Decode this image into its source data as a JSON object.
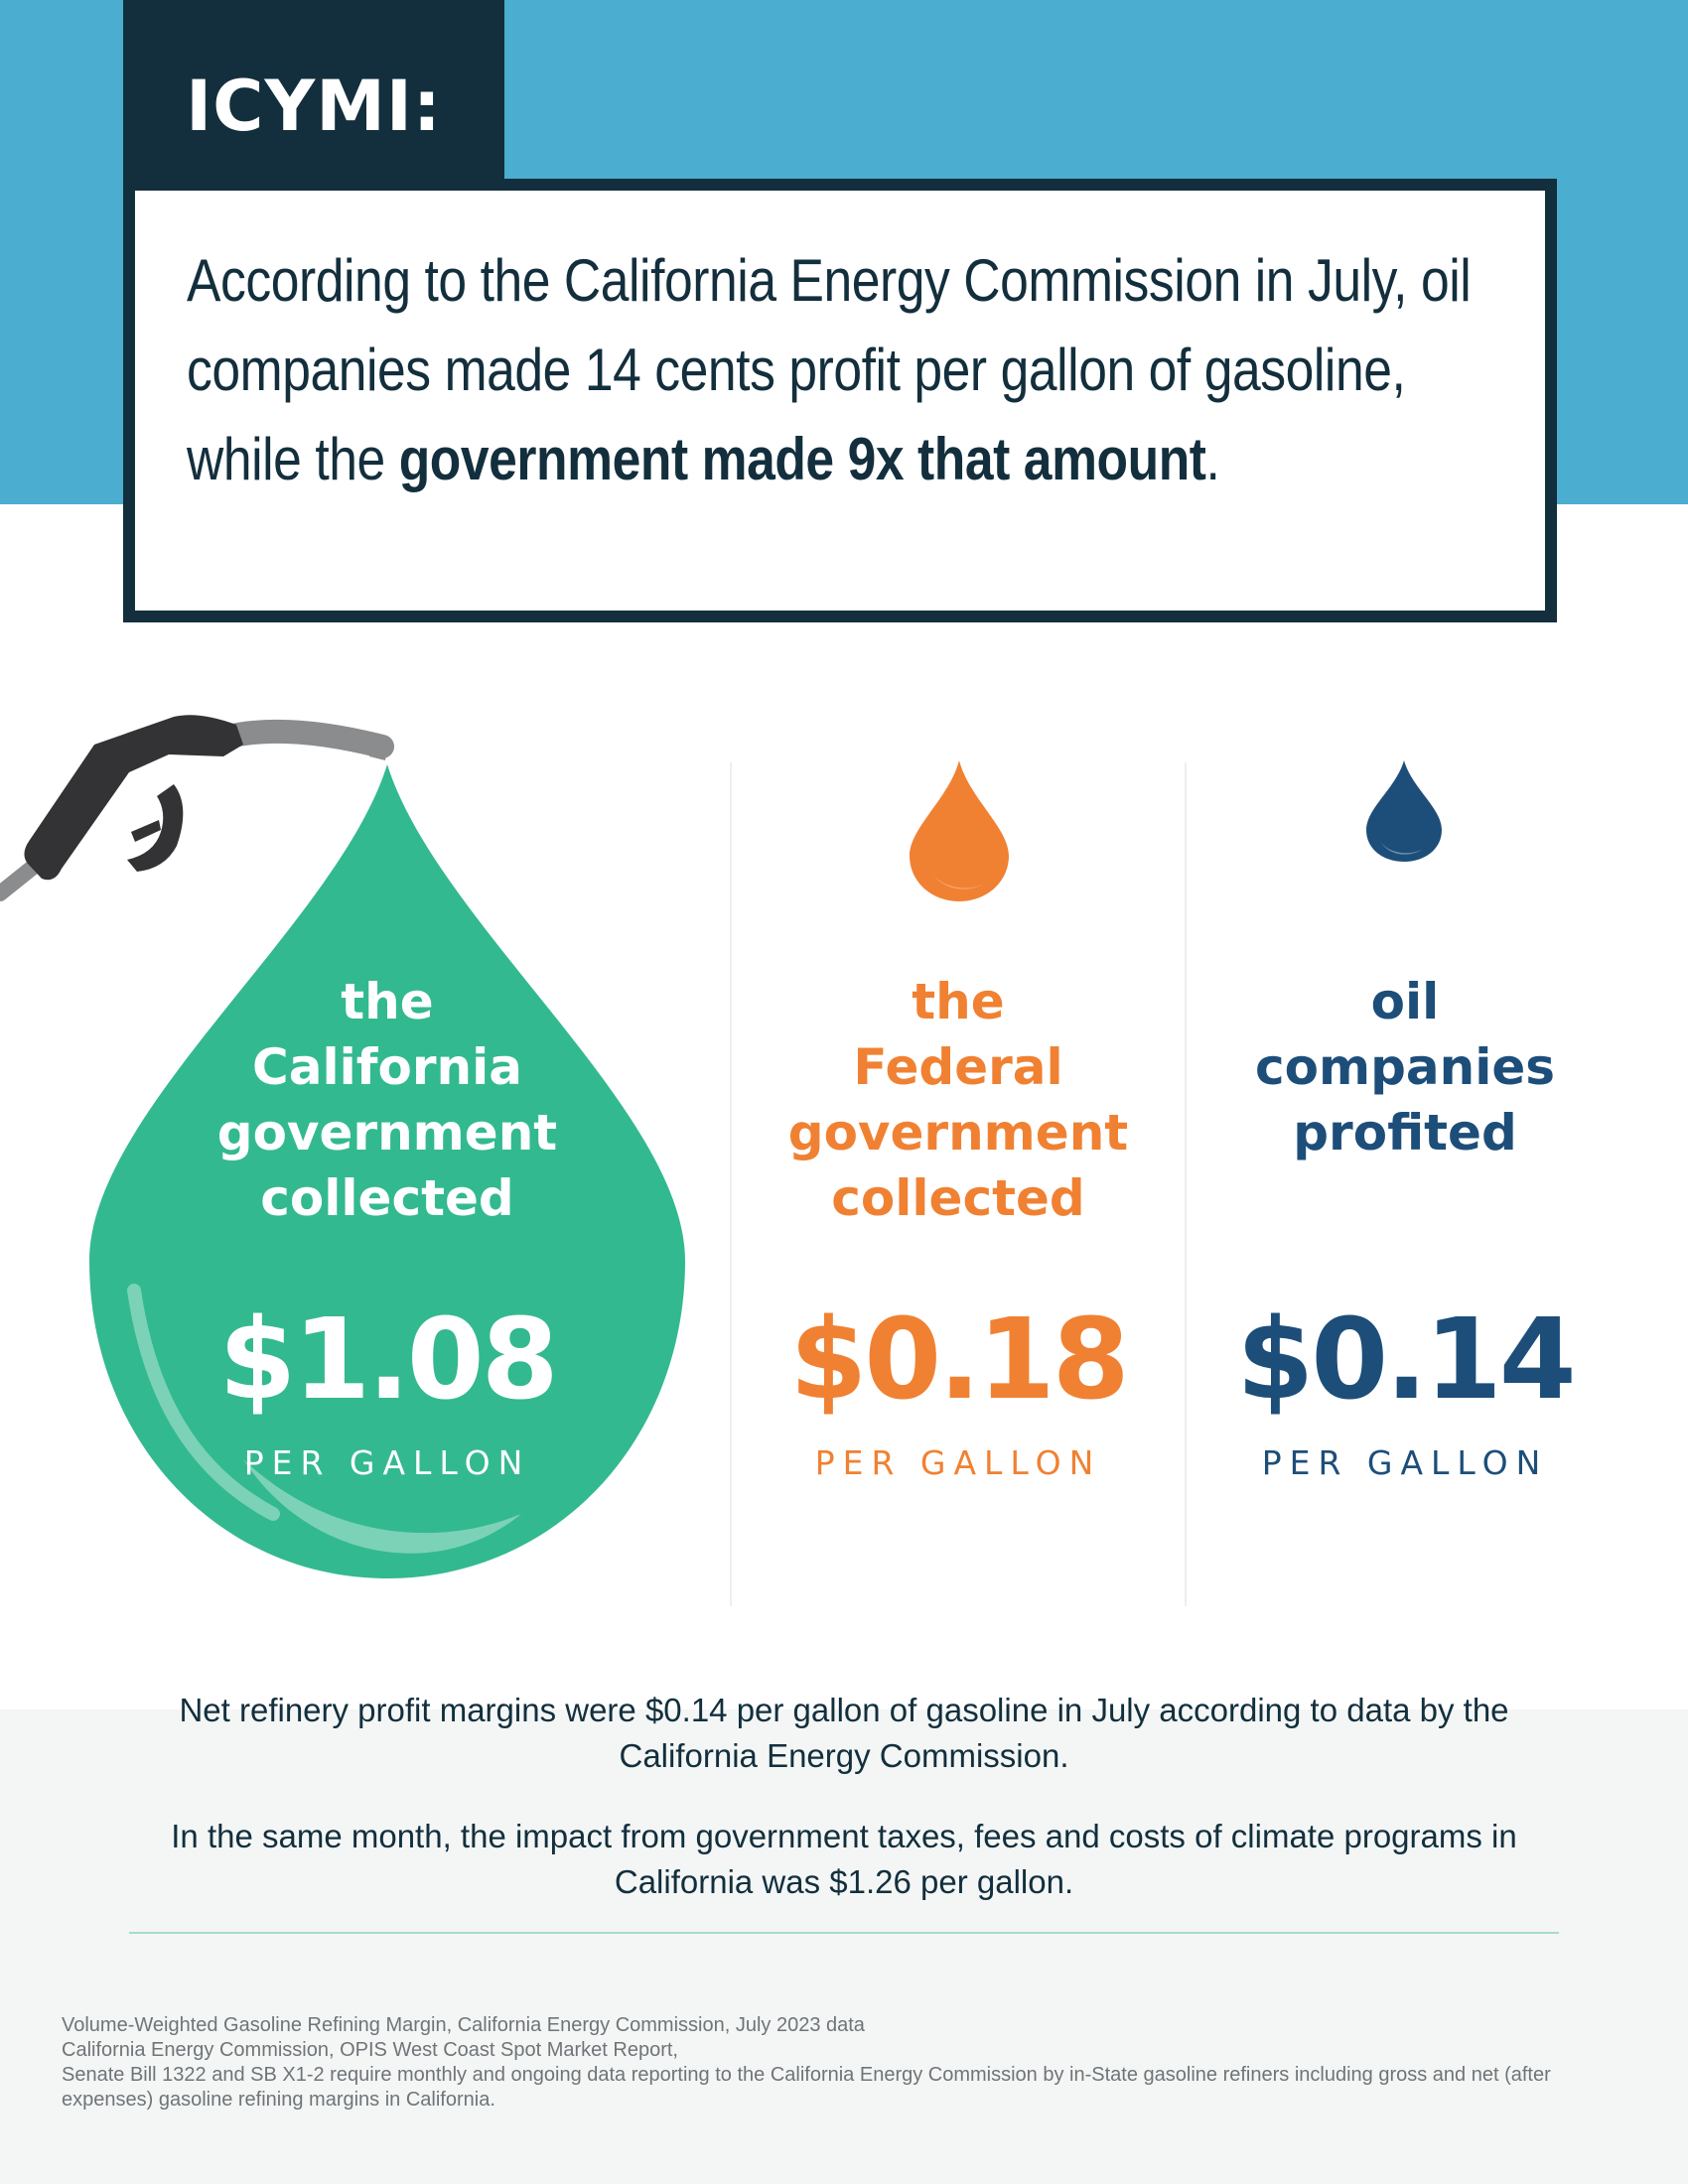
{
  "tag": "ICYMI:",
  "headline": {
    "plain": "According to the California Energy Commission in July, oil companies made 14 cents profit per gallon of gasoline, while the ",
    "bold": "government made 9x that amount",
    "end": "."
  },
  "columns": [
    {
      "label_lines": [
        "the",
        "California",
        "government",
        "collected"
      ],
      "amount": "$1.08",
      "unit": "PER GALLON",
      "color": "#ffffff",
      "drop_color": "#33b98f"
    },
    {
      "label_lines": [
        "the",
        "Federal",
        "government",
        "collected"
      ],
      "amount": "$0.18",
      "unit": "PER GALLON",
      "color": "#f08132"
    },
    {
      "label_lines": [
        "oil",
        "companies",
        "profited"
      ],
      "amount": "$0.14",
      "unit": "PER GALLON",
      "color": "#1d4e7a"
    }
  ],
  "icons": [
    "gas-pump-nozzle-icon",
    "orange-drop-icon",
    "blue-drop-icon"
  ],
  "paragraphs": [
    "Net refinery profit margins were $0.14 per gallon of gasoline in July according to data by the California Energy Commission.",
    "In the same month, the impact from government taxes, fees and costs of climate programs in California was $1.26 per gallon."
  ],
  "sources": [
    "Volume-Weighted Gasoline Refining Margin, California Energy Commission, July 2023 data",
    "California Energy Commission, OPIS West Coast Spot Market Report,",
    "Senate Bill 1322 and SB X1-2 require monthly and ongoing data reporting to the California Energy Commission by in-State gasoline refiners including gross and net (after expenses) gasoline refining margins in California."
  ]
}
